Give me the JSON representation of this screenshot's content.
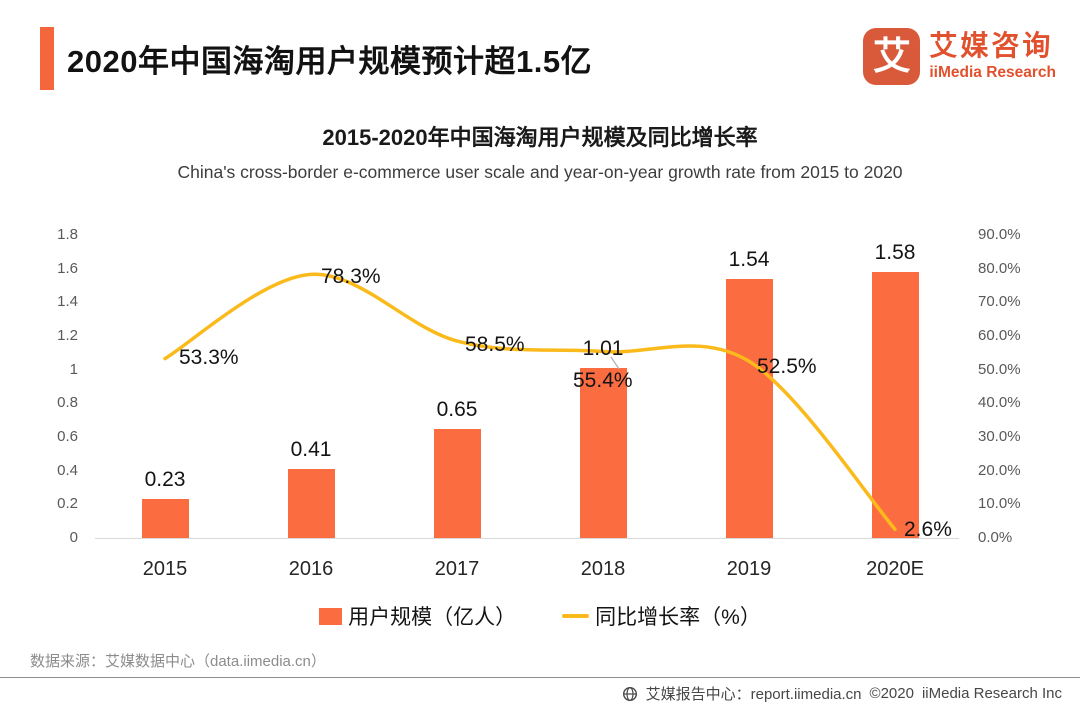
{
  "header": {
    "title": "2020年中国海淘用户规模预计超1.5亿",
    "logo": {
      "mark": "艾",
      "name_cn": "艾媒咨询",
      "name_en": "iiMedia Research"
    }
  },
  "chart": {
    "title": "2015-2020年中国海淘用户规模及同比增长率",
    "subtitle": "China's cross-border e-commerce user scale and year-on-year growth rate from 2015 to 2020"
  },
  "chart_data": {
    "type": "bar",
    "combo": "bar+line",
    "categories": [
      "2015",
      "2016",
      "2017",
      "2018",
      "2019",
      "2020E"
    ],
    "series": [
      {
        "name": "用户规模（亿人）",
        "type": "bar",
        "axis": "left",
        "values": [
          0.23,
          0.41,
          0.65,
          1.01,
          1.54,
          1.58
        ],
        "labels": [
          "0.23",
          "0.41",
          "0.65",
          "1.01",
          "1.54",
          "1.58"
        ]
      },
      {
        "name": "同比增长率（%）",
        "type": "line",
        "axis": "right",
        "values": [
          53.3,
          78.3,
          58.5,
          55.4,
          52.5,
          2.6
        ],
        "labels": [
          "53.3%",
          "78.3%",
          "58.5%",
          "55.4%",
          "52.5%",
          "2.6%"
        ]
      }
    ],
    "left_axis": {
      "min": 0,
      "max": 1.8,
      "ticks": [
        "1.8",
        "1.6",
        "1.4",
        "1.2",
        "1",
        "0.8",
        "0.6",
        "0.4",
        "0.2",
        "0"
      ]
    },
    "right_axis": {
      "min": 0,
      "max": 90,
      "ticks": [
        "90.0%",
        "80.0%",
        "70.0%",
        "60.0%",
        "50.0%",
        "40.0%",
        "30.0%",
        "20.0%",
        "10.0%",
        "0.0%"
      ]
    },
    "colors": {
      "bar": "#FB6C40",
      "line": "#FBBA1B",
      "accent": "#F4673C",
      "logo": "#E2512E"
    },
    "grid": false,
    "legend_position": "bottom"
  },
  "footer": {
    "source": "数据来源：艾媒数据中心（data.iimedia.cn）",
    "report_center": "艾媒报告中心：report.iimedia.cn",
    "copyright": "©2020",
    "company": "iiMedia Research Inc"
  }
}
